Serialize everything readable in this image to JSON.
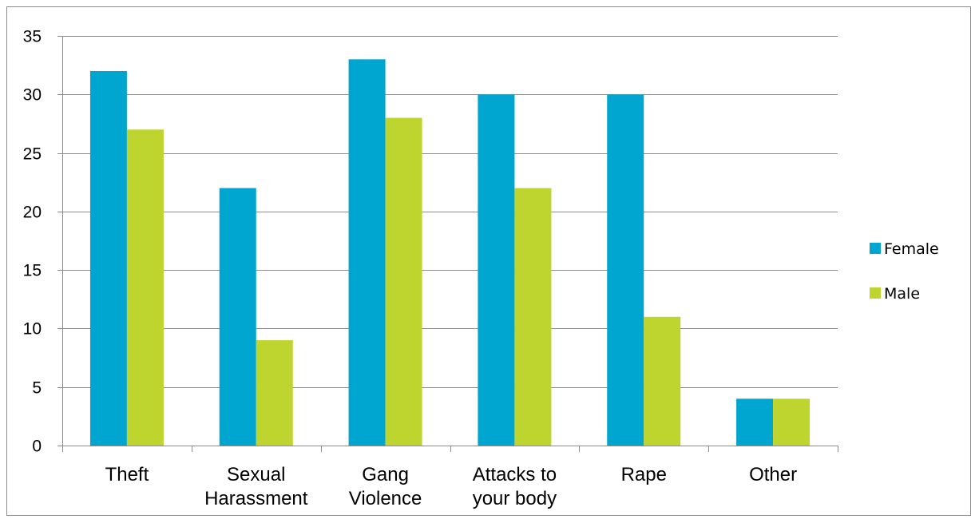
{
  "chart_data": {
    "type": "bar",
    "categories": [
      [
        "Theft"
      ],
      [
        "Sexual",
        "Harassment"
      ],
      [
        "Gang",
        "Violence"
      ],
      [
        "Attacks to",
        "your body"
      ],
      [
        "Rape"
      ],
      [
        "Other"
      ]
    ],
    "series": [
      {
        "name": "Female",
        "values": [
          32,
          22,
          33,
          30,
          30,
          4
        ],
        "color": "#00A6CF"
      },
      {
        "name": "Male",
        "values": [
          27,
          9,
          28,
          22,
          11,
          4
        ],
        "color": "#BED52F"
      }
    ],
    "ylim": [
      0,
      35
    ],
    "yticks": [
      0,
      5,
      10,
      15,
      20,
      25,
      30,
      35
    ],
    "grid": true,
    "legend": "right",
    "gridline_color": "#8c8c8c"
  }
}
